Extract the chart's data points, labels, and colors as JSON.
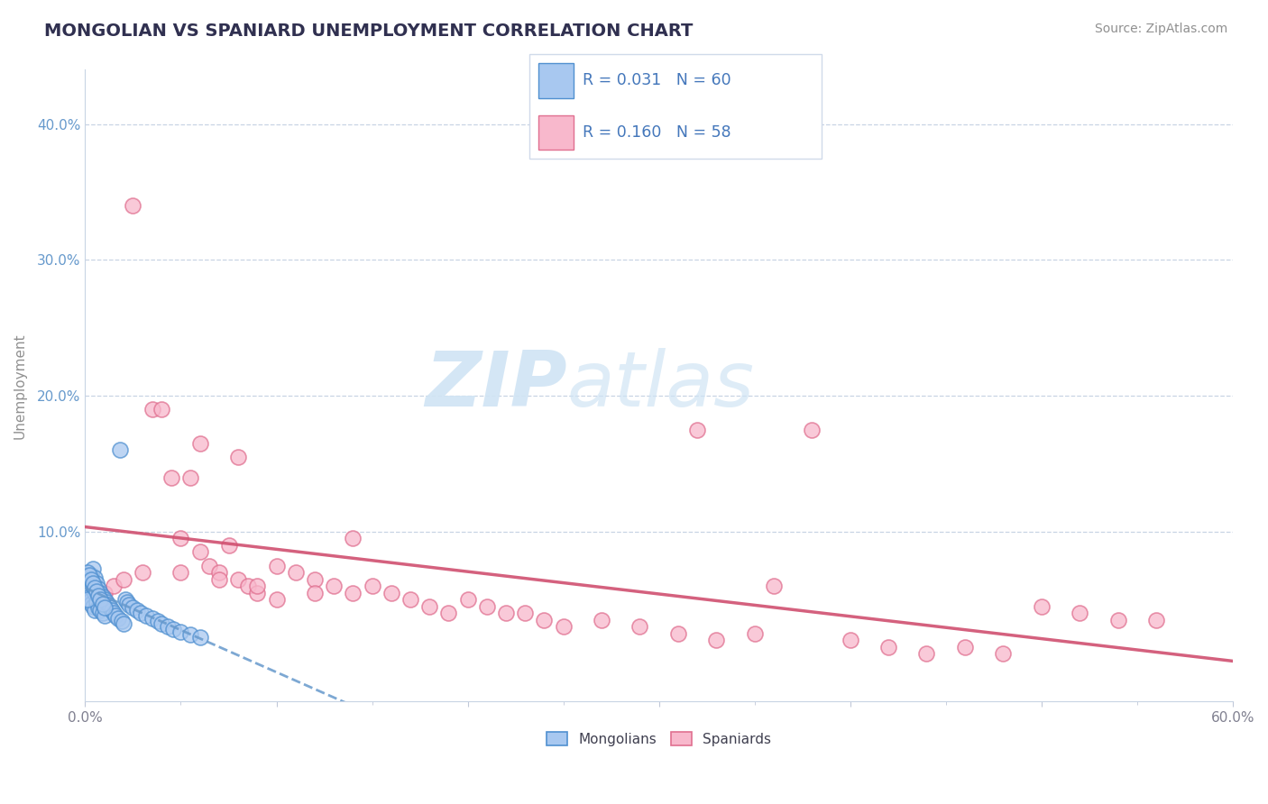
{
  "title": "MONGOLIAN VS SPANIARD UNEMPLOYMENT CORRELATION CHART",
  "source": "Source: ZipAtlas.com",
  "ylabel": "Unemployment",
  "ytick_vals": [
    0.0,
    0.1,
    0.2,
    0.3,
    0.4
  ],
  "ytick_labels": [
    "",
    "10.0%",
    "20.0%",
    "30.0%",
    "40.0%"
  ],
  "xlim": [
    0.0,
    0.6
  ],
  "ylim": [
    -0.025,
    0.44
  ],
  "mongolian_R": 0.031,
  "mongolian_N": 60,
  "spaniard_R": 0.16,
  "spaniard_N": 58,
  "mongolian_face": "#a8c8f0",
  "mongolian_edge": "#5090d0",
  "spaniard_face": "#f8b8cc",
  "spaniard_edge": "#e07090",
  "trend_mongolian_color": "#6699cc",
  "trend_spaniard_color": "#d05070",
  "background_color": "#ffffff",
  "grid_color": "#c8d4e4",
  "title_color": "#303050",
  "watermark_color": "#d0e4f4",
  "mongolian_x": [
    0.001,
    0.001,
    0.002,
    0.002,
    0.002,
    0.003,
    0.003,
    0.003,
    0.004,
    0.004,
    0.004,
    0.005,
    0.005,
    0.005,
    0.006,
    0.006,
    0.007,
    0.007,
    0.008,
    0.008,
    0.009,
    0.009,
    0.01,
    0.01,
    0.011,
    0.012,
    0.013,
    0.014,
    0.015,
    0.016,
    0.017,
    0.018,
    0.019,
    0.02,
    0.021,
    0.022,
    0.023,
    0.025,
    0.027,
    0.029,
    0.032,
    0.035,
    0.038,
    0.04,
    0.043,
    0.046,
    0.05,
    0.055,
    0.06,
    0.001,
    0.001,
    0.002,
    0.003,
    0.004,
    0.005,
    0.006,
    0.007,
    0.008,
    0.009,
    0.01
  ],
  "mongolian_y": [
    0.06,
    0.055,
    0.065,
    0.058,
    0.052,
    0.068,
    0.05,
    0.047,
    0.073,
    0.06,
    0.045,
    0.066,
    0.055,
    0.042,
    0.062,
    0.048,
    0.058,
    0.044,
    0.055,
    0.042,
    0.052,
    0.04,
    0.05,
    0.038,
    0.048,
    0.046,
    0.044,
    0.042,
    0.04,
    0.038,
    0.036,
    0.16,
    0.034,
    0.032,
    0.05,
    0.048,
    0.046,
    0.044,
    0.042,
    0.04,
    0.038,
    0.036,
    0.034,
    0.032,
    0.03,
    0.028,
    0.026,
    0.024,
    0.022,
    0.07,
    0.05,
    0.068,
    0.065,
    0.062,
    0.059,
    0.056,
    0.053,
    0.05,
    0.047,
    0.044
  ],
  "spaniard_x": [
    0.01,
    0.015,
    0.02,
    0.025,
    0.03,
    0.035,
    0.04,
    0.045,
    0.05,
    0.055,
    0.06,
    0.065,
    0.07,
    0.075,
    0.08,
    0.085,
    0.09,
    0.1,
    0.11,
    0.12,
    0.13,
    0.14,
    0.15,
    0.16,
    0.17,
    0.18,
    0.19,
    0.2,
    0.21,
    0.22,
    0.23,
    0.24,
    0.25,
    0.27,
    0.29,
    0.31,
    0.33,
    0.35,
    0.38,
    0.4,
    0.42,
    0.44,
    0.46,
    0.48,
    0.5,
    0.52,
    0.54,
    0.56,
    0.06,
    0.08,
    0.1,
    0.12,
    0.14,
    0.36,
    0.05,
    0.07,
    0.09,
    0.32
  ],
  "spaniard_y": [
    0.055,
    0.06,
    0.065,
    0.34,
    0.07,
    0.19,
    0.19,
    0.14,
    0.095,
    0.14,
    0.085,
    0.075,
    0.07,
    0.09,
    0.065,
    0.06,
    0.055,
    0.075,
    0.07,
    0.065,
    0.06,
    0.055,
    0.06,
    0.055,
    0.05,
    0.045,
    0.04,
    0.05,
    0.045,
    0.04,
    0.04,
    0.035,
    0.03,
    0.035,
    0.03,
    0.025,
    0.02,
    0.025,
    0.175,
    0.02,
    0.015,
    0.01,
    0.015,
    0.01,
    0.045,
    0.04,
    0.035,
    0.035,
    0.165,
    0.155,
    0.05,
    0.055,
    0.095,
    0.06,
    0.07,
    0.065,
    0.06,
    0.175
  ],
  "legend_R_color": "#4477bb",
  "legend_N_color": "#4477bb",
  "axis_label_color": "#6699cc",
  "xtick_color": "#808090"
}
